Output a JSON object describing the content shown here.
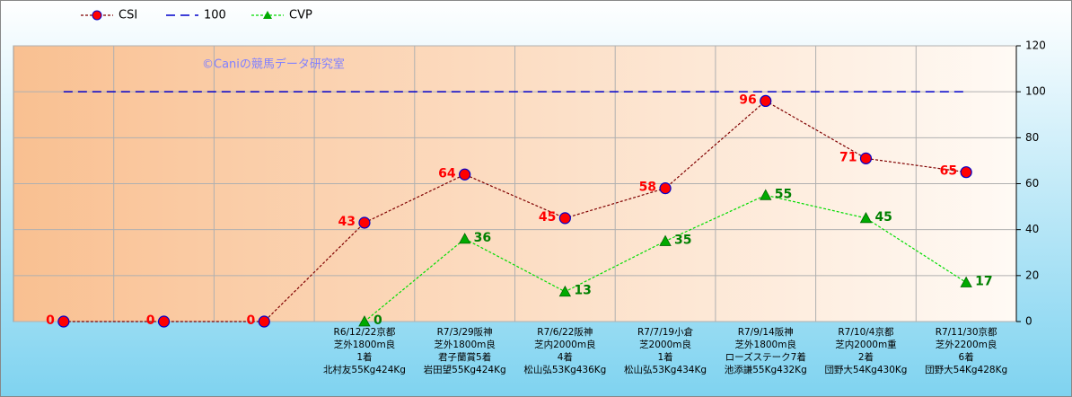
{
  "chart_data": {
    "type": "line",
    "annotation": "©Caniの競馬データ研究室",
    "categories": [
      null,
      null,
      null,
      [
        "R6/12/22京都",
        "芝外1800m良",
        "1着",
        "北村友55Kg424Kg"
      ],
      [
        "R7/3/29阪神",
        "芝外1800m良",
        "君子蘭賞5着",
        "岩田望55Kg424Kg"
      ],
      [
        "R7/6/22阪神",
        "芝内2000m良",
        "4着",
        "松山弘53Kg436Kg"
      ],
      [
        "R7/7/19小倉",
        "芝2000m良",
        "1着",
        "松山弘53Kg434Kg"
      ],
      [
        "R7/9/14阪神",
        "芝外1800m良",
        "ローズステーク7着",
        "池添謙55Kg432Kg"
      ],
      [
        "R7/10/4京都",
        "芝内2000m重",
        "2着",
        "団野大54Kg430Kg"
      ],
      [
        "R7/11/30京都",
        "芝外2200m良",
        "6着",
        "団野大54Kg428Kg"
      ]
    ],
    "series": [
      {
        "name": "CSI",
        "color": "#800000",
        "marker": "circle",
        "marker_color": "#ff0000",
        "label_color": "#ff0000",
        "label_side": "left",
        "values": [
          0,
          0,
          0,
          43,
          64,
          45,
          58,
          96,
          71,
          65
        ]
      },
      {
        "name": "100",
        "color": "#0000cc",
        "marker": "none",
        "values": [
          100,
          100,
          100,
          100,
          100,
          100,
          100,
          100,
          100,
          100
        ]
      },
      {
        "name": "CVP",
        "color": "#00dd00",
        "marker": "triangle",
        "marker_color": "#00aa00",
        "label_color": "#008000",
        "label_side": "right",
        "values": [
          null,
          null,
          null,
          0,
          36,
          13,
          35,
          55,
          45,
          17
        ]
      }
    ],
    "ylim": [
      0,
      120
    ],
    "yticks": [
      0,
      20,
      40,
      60,
      80,
      100,
      120
    ],
    "y_axis_side": "right",
    "grid": true,
    "legend": "top-left"
  }
}
